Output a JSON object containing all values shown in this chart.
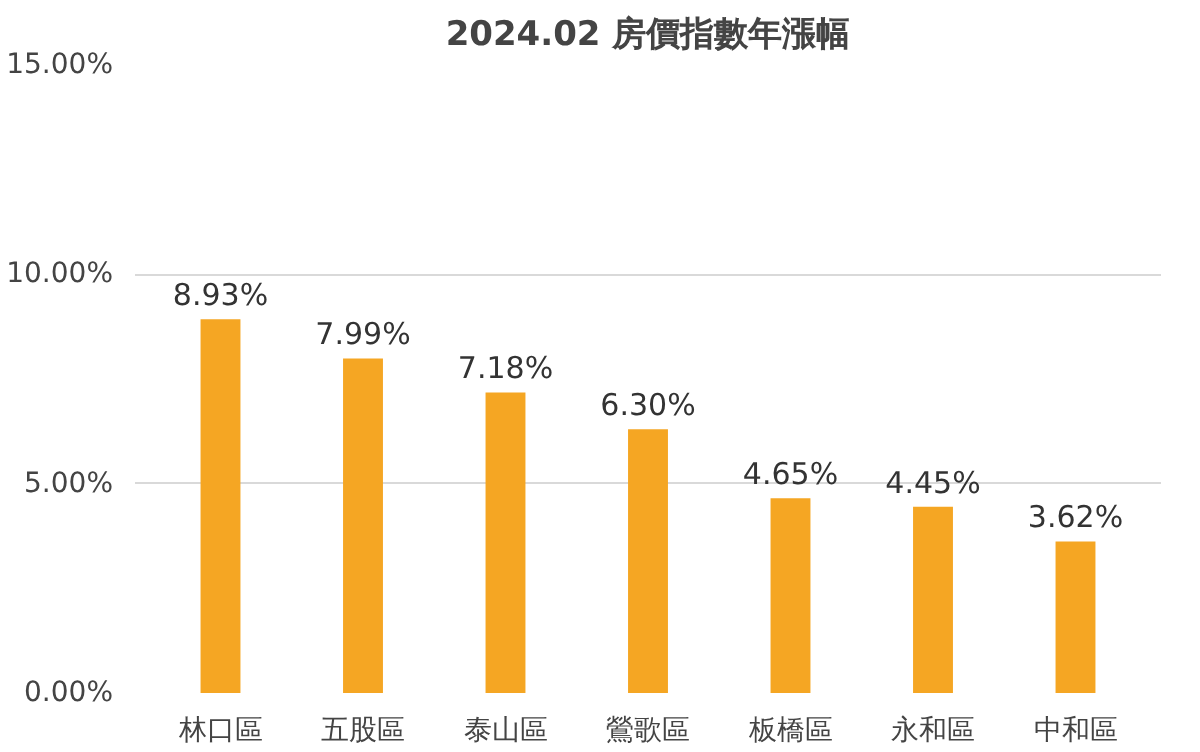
{
  "chart_data": {
    "type": "bar",
    "title": "2024.02 房價指數年漲幅",
    "categories": [
      "林口區",
      "五股區",
      "泰山區",
      "鶯歌區",
      "板橋區",
      "永和區",
      "中和區"
    ],
    "values": [
      8.93,
      7.99,
      7.18,
      6.3,
      4.65,
      4.45,
      3.62
    ],
    "value_labels": [
      "8.93%",
      "7.99%",
      "7.18%",
      "6.30%",
      "4.65%",
      "4.45%",
      "3.62%"
    ],
    "color": "#f5a623",
    "ylim": [
      0,
      15
    ],
    "yticks": [
      {
        "value": 0,
        "label": "0.00%"
      },
      {
        "value": 5,
        "label": "5.00%"
      },
      {
        "value": 10,
        "label": "10.00%"
      },
      {
        "value": 15,
        "label": "15.00%"
      }
    ],
    "grid": "y"
  }
}
